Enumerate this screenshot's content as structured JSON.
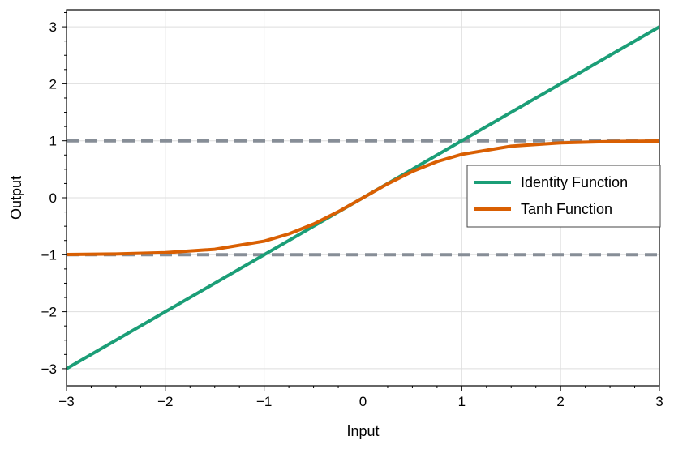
{
  "chart_data": {
    "type": "line",
    "xlabel": "Input",
    "ylabel": "Output",
    "xlim": [
      -3,
      3
    ],
    "ylim": [
      -3.3,
      3.3
    ],
    "grid": true,
    "legend_position": "center-right",
    "xticks": [
      -3,
      -2,
      -1,
      0,
      1,
      2,
      3
    ],
    "yticks": [
      -3,
      -2,
      -1,
      0,
      1,
      2,
      3
    ],
    "xtick_labels": [
      "−3",
      "−2",
      "−1",
      "0",
      "1",
      "2",
      "3"
    ],
    "ytick_labels": [
      "−3",
      "−2",
      "−1",
      "0",
      "1",
      "2",
      "3"
    ],
    "series": [
      {
        "name": "Identity Function",
        "color": "#1b9e77",
        "x": [
          -3,
          3
        ],
        "y": [
          -3,
          3
        ]
      },
      {
        "name": "Tanh Function",
        "color": "#d95f02",
        "x": [
          -3,
          -2.5,
          -2,
          -1.5,
          -1,
          -0.75,
          -0.5,
          -0.25,
          0,
          0.25,
          0.5,
          0.75,
          1,
          1.5,
          2,
          2.5,
          3
        ],
        "y": [
          -0.995,
          -0.987,
          -0.964,
          -0.905,
          -0.762,
          -0.635,
          -0.462,
          -0.245,
          0,
          0.245,
          0.462,
          0.635,
          0.762,
          0.905,
          0.964,
          0.987,
          0.995
        ]
      }
    ],
    "reference_lines": [
      {
        "y": 1,
        "color": "#878e97",
        "style": "dashed"
      },
      {
        "y": -1,
        "color": "#878e97",
        "style": "dashed"
      }
    ]
  }
}
